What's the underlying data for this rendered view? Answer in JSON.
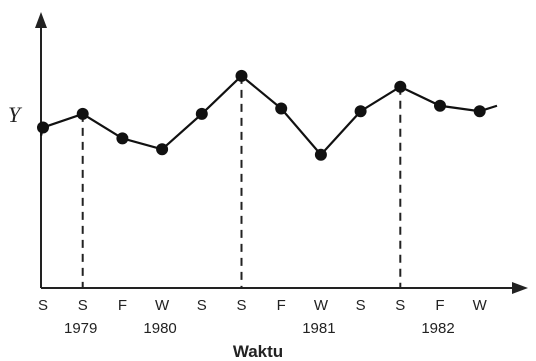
{
  "chart_data": {
    "type": "line",
    "title": "",
    "xlabel": "Waktu",
    "ylabel": "Y",
    "grid": false,
    "y_ticks_shown": false,
    "x": [
      "S",
      "S",
      "F",
      "W",
      "S",
      "S",
      "F",
      "W",
      "S",
      "S",
      "F",
      "W"
    ],
    "years": [
      {
        "label": "1979",
        "at_index": 1
      },
      {
        "label": "1980",
        "at_index": 3
      },
      {
        "label": "1981",
        "at_index": 7
      },
      {
        "label": "1982",
        "at_index": 10
      }
    ],
    "series": [
      {
        "values": [
          5.9,
          6.4,
          5.5,
          5.1,
          6.4,
          7.8,
          6.6,
          4.9,
          6.5,
          7.4,
          6.7,
          6.5
        ],
        "color": "#111111"
      }
    ],
    "line_start_value": 5.6,
    "line_end_value": 6.7,
    "dashed_drops_at_indices": [
      1,
      5,
      9
    ]
  }
}
